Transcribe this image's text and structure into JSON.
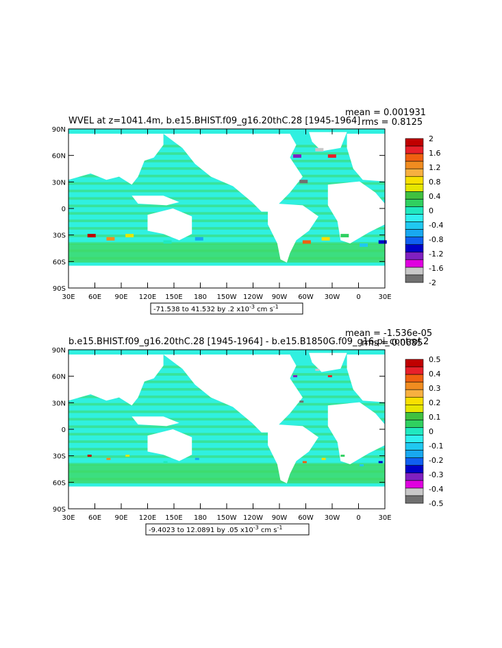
{
  "chart_data": [
    {
      "type": "heatmap",
      "title": "WVEL at z=1041.4m, b.e15.BHIST.f09_g16.20thC.28 [1945-1964]",
      "stat_mean": "mean = 0.001931",
      "stat_rms": "rms = 0.8125",
      "x_ticks": [
        "30E",
        "60E",
        "90E",
        "120E",
        "150E",
        "180",
        "150W",
        "120W",
        "90W",
        "60W",
        "30W",
        "0",
        "30E"
      ],
      "y_ticks": [
        "90N",
        "60N",
        "30N",
        "0",
        "30S",
        "60S",
        "90S"
      ],
      "colorbar_labels": [
        "2",
        "1.6",
        "1.2",
        "0.8",
        "0.4",
        "0",
        "-0.4",
        "-0.8",
        "-1.2",
        "-1.6",
        "-2"
      ],
      "colorbar_colors": [
        "#c00000",
        "#e8202a",
        "#f06010",
        "#f08c20",
        "#f7b040",
        "#f8e000",
        "#e6e600",
        "#40c040",
        "#30d060",
        "#20e8c0",
        "#30f0f0",
        "#20c8f0",
        "#18a8f0",
        "#1060f0",
        "#0000c8",
        "#8020c0",
        "#e000e0",
        "#c8c8c8",
        "#707070"
      ],
      "range_note": "-71.538 to 41.532 by .2 x10",
      "range_exp": "-3",
      "range_units": " cm s",
      "range_units_exp": "-1",
      "ocean_color": "#30f0e0",
      "anomaly_color": "#40d860"
    },
    {
      "type": "heatmap",
      "title": "b.e15.BHIST.f09_g16.20thC.28 [1945-1964] - b.e15.B1850G.f09_g16.pi_control.2",
      "stat_mean": "mean = -1.536e-05",
      "stat_rms": "rms = 0.0685",
      "x_ticks": [
        "30E",
        "60E",
        "90E",
        "120E",
        "150E",
        "180",
        "150W",
        "120W",
        "90W",
        "60W",
        "30W",
        "0",
        "30E"
      ],
      "y_ticks": [
        "90N",
        "60N",
        "30N",
        "0",
        "30S",
        "60S",
        "90S"
      ],
      "colorbar_labels": [
        "0.5",
        "0.4",
        "0.3",
        "0.2",
        "0.1",
        "0",
        "-0.1",
        "-0.2",
        "-0.3",
        "-0.4",
        "-0.5"
      ],
      "colorbar_colors": [
        "#c00000",
        "#e8202a",
        "#f06010",
        "#f08c20",
        "#f7b040",
        "#f8e000",
        "#e6e600",
        "#40c040",
        "#30d060",
        "#20e8c0",
        "#30f0f0",
        "#20c8f0",
        "#18a8f0",
        "#1060f0",
        "#0000c8",
        "#8020c0",
        "#e000e0",
        "#c8c8c8",
        "#707070"
      ],
      "range_note": "-9.4023 to 12.0891 by .05 x10",
      "range_exp": "-3",
      "range_units": " cm s",
      "range_units_exp": "-1",
      "ocean_color": "#30f0e0",
      "anomaly_color": "#40d860"
    }
  ]
}
